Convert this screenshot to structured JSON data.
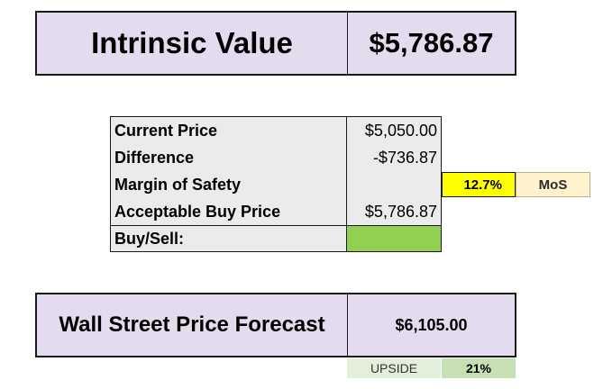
{
  "intrinsic": {
    "label": "Intrinsic Value",
    "value": "$5,786.87"
  },
  "price_table": {
    "rows": [
      {
        "label": "Current Price",
        "value": "$5,050.00"
      },
      {
        "label": "Difference",
        "value": "-$736.87"
      },
      {
        "label": "Margin of Safety",
        "value": ""
      },
      {
        "label": "Acceptable Buy Price",
        "value": "$5,786.87"
      },
      {
        "label": "Buy/Sell:",
        "value": ""
      }
    ],
    "buy_sell_color": "#92d050"
  },
  "margin_of_safety": {
    "percent": "12.7%",
    "tag": "MoS",
    "percent_color": "#ffff00",
    "tag_color": "#fff2cc"
  },
  "forecast": {
    "label": "Wall Street Price Forecast",
    "value": "$6,105.00",
    "upside_label": "UPSIDE",
    "upside_value": "21%"
  },
  "colors": {
    "banner_fill": "#e4dbef",
    "table_fill": "#ebebeb",
    "upside_label_fill": "#e2efda",
    "upside_value_fill": "#c6e0b4"
  }
}
